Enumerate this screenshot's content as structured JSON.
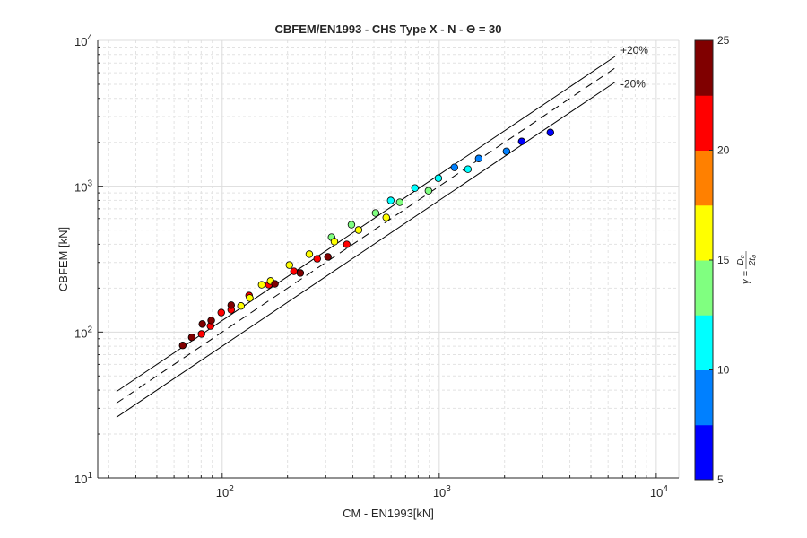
{
  "chart_data": {
    "type": "scatter",
    "title": "CBFEM/EN1993 - CHS Type X - N - Θ = 30",
    "xlabel": "CM - EN1993[kN]",
    "ylabel": "CBFEM [kN]",
    "xscale": "log",
    "yscale": "log",
    "xlim": [
      26.7,
      12700
    ],
    "ylim": [
      10,
      10000
    ],
    "grid": "major and minor",
    "x_tick_labels": [
      {
        "base": "10",
        "exp": "2",
        "value": 100
      },
      {
        "base": "10",
        "exp": "3",
        "value": 1000
      },
      {
        "base": "10",
        "exp": "4",
        "value": 10000
      }
    ],
    "y_tick_labels": [
      {
        "base": "10",
        "exp": "1",
        "value": 10
      },
      {
        "base": "10",
        "exp": "2",
        "value": 100
      },
      {
        "base": "10",
        "exp": "3",
        "value": 1000
      },
      {
        "base": "10",
        "exp": "4",
        "value": 10000
      }
    ],
    "reference_lines": [
      {
        "name": "+20%",
        "factor": 1.2,
        "style": "solid",
        "label": "+20%"
      },
      {
        "name": "1:1",
        "factor": 1.0,
        "style": "dashed",
        "label": ""
      },
      {
        "name": "-20%",
        "factor": 0.8,
        "style": "solid",
        "label": "-20%"
      }
    ],
    "reference_line_xrange": [
      32.6,
      6460
    ],
    "colorbar": {
      "label_prefix": "γ = ",
      "label_num": "D₀",
      "label_den": "2t₀",
      "range": [
        5,
        25
      ],
      "ticks": [
        "5",
        "10",
        "15",
        "20",
        "25"
      ],
      "colors": [
        "#0000ff",
        "#0080ff",
        "#00ffff",
        "#80ff80",
        "#ffff00",
        "#ff8000",
        "#ff0000",
        "#800000"
      ]
    },
    "points": [
      {
        "x": 65.8,
        "y": 81,
        "gamma": 24
      },
      {
        "x": 72.4,
        "y": 92,
        "gamma": 24
      },
      {
        "x": 80.3,
        "y": 97,
        "gamma": 21
      },
      {
        "x": 81,
        "y": 113.5,
        "gamma": 24
      },
      {
        "x": 88.3,
        "y": 110,
        "gamma": 21
      },
      {
        "x": 89,
        "y": 120,
        "gamma": 24
      },
      {
        "x": 99,
        "y": 136,
        "gamma": 21
      },
      {
        "x": 110,
        "y": 142,
        "gamma": 21
      },
      {
        "x": 110,
        "y": 153,
        "gamma": 24
      },
      {
        "x": 122,
        "y": 151,
        "gamma": 16.5
      },
      {
        "x": 133,
        "y": 178,
        "gamma": 21
      },
      {
        "x": 134,
        "y": 171,
        "gamma": 16.5
      },
      {
        "x": 152,
        "y": 211,
        "gamma": 16.5
      },
      {
        "x": 164,
        "y": 211,
        "gamma": 21
      },
      {
        "x": 167,
        "y": 224,
        "gamma": 16.5
      },
      {
        "x": 175,
        "y": 214,
        "gamma": 24
      },
      {
        "x": 204,
        "y": 288,
        "gamma": 16.5
      },
      {
        "x": 214,
        "y": 261,
        "gamma": 21
      },
      {
        "x": 229,
        "y": 254,
        "gamma": 24
      },
      {
        "x": 252,
        "y": 342,
        "gamma": 16.5
      },
      {
        "x": 274,
        "y": 318,
        "gamma": 21
      },
      {
        "x": 307,
        "y": 328,
        "gamma": 24
      },
      {
        "x": 319,
        "y": 447,
        "gamma": 14
      },
      {
        "x": 329,
        "y": 417,
        "gamma": 16.5
      },
      {
        "x": 375,
        "y": 399,
        "gamma": 21
      },
      {
        "x": 394,
        "y": 545,
        "gamma": 14
      },
      {
        "x": 425,
        "y": 501,
        "gamma": 16.5
      },
      {
        "x": 509,
        "y": 655,
        "gamma": 14
      },
      {
        "x": 570,
        "y": 610,
        "gamma": 16.5
      },
      {
        "x": 598,
        "y": 798,
        "gamma": 11.5
      },
      {
        "x": 658,
        "y": 776,
        "gamma": 14
      },
      {
        "x": 773,
        "y": 972,
        "gamma": 11.5
      },
      {
        "x": 892,
        "y": 931,
        "gamma": 14
      },
      {
        "x": 991,
        "y": 1135,
        "gamma": 11.5
      },
      {
        "x": 1175,
        "y": 1346,
        "gamma": 9
      },
      {
        "x": 1356,
        "y": 1308,
        "gamma": 11.5
      },
      {
        "x": 1520,
        "y": 1549,
        "gamma": 9
      },
      {
        "x": 2041,
        "y": 1734,
        "gamma": 9
      },
      {
        "x": 2399,
        "y": 2028,
        "gamma": 6
      },
      {
        "x": 3252,
        "y": 2335,
        "gamma": 6
      }
    ]
  }
}
